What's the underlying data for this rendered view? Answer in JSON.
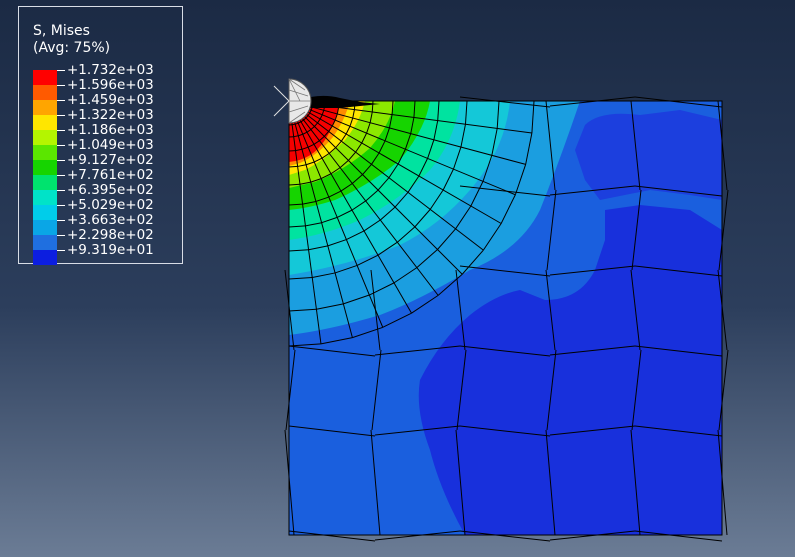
{
  "legend": {
    "title": "S, Mises",
    "subtitle": "(Avg: 75%)",
    "entries": [
      {
        "label": "+1.732e+03",
        "color": "#ff0000"
      },
      {
        "label": "+1.596e+03",
        "color": "#ff5a00"
      },
      {
        "label": "+1.459e+03",
        "color": "#ffa500"
      },
      {
        "label": "+1.322e+03",
        "color": "#ffe600"
      },
      {
        "label": "+1.186e+03",
        "color": "#b4f500"
      },
      {
        "label": "+1.049e+03",
        "color": "#5be600"
      },
      {
        "label": "+9.127e+02",
        "color": "#16d400"
      },
      {
        "label": "+7.761e+02",
        "color": "#00e36e"
      },
      {
        "label": "+6.395e+02",
        "color": "#00e3c8"
      },
      {
        "label": "+5.029e+02",
        "color": "#00cdea"
      },
      {
        "label": "+3.663e+02",
        "color": "#0aa6e6"
      },
      {
        "label": "+2.298e+02",
        "color": "#1f6fe0"
      },
      {
        "label": "+9.319e+01",
        "color": "#0c1ee0"
      }
    ]
  },
  "viewport": {
    "colors": {
      "field_low": "#1830dc",
      "field_mid": "#1a5fde",
      "field_light": "#1b9ee0",
      "field_cyan": "#14c8d8",
      "mesh_line": "#000000",
      "indenter": "#e8e8e8"
    }
  }
}
